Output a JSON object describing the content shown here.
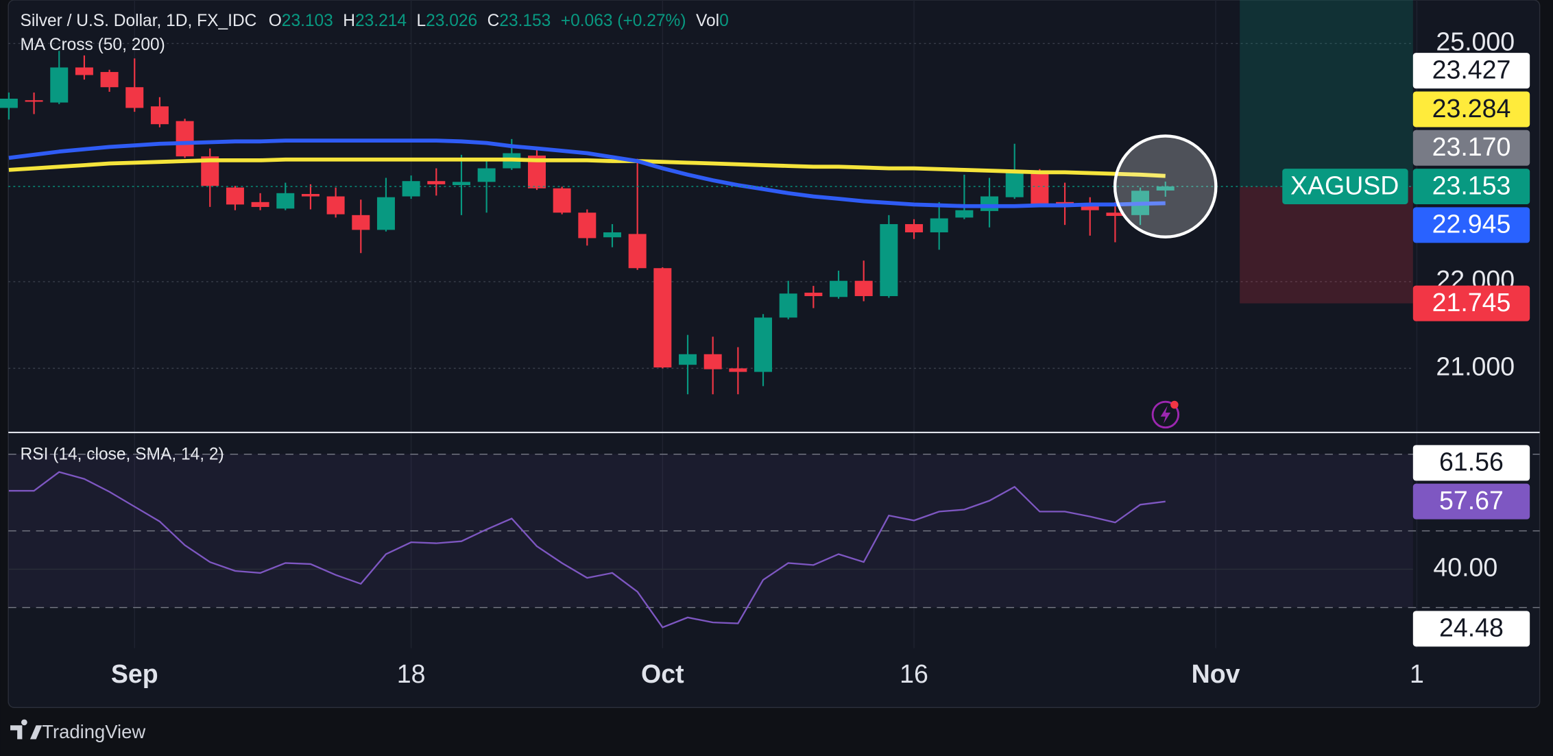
{
  "header": {
    "symbol": "Silver / U.S. Dollar, 1D, FX_IDC",
    "ohlc_labels": [
      "O",
      "H",
      "L",
      "C"
    ],
    "change": "+0.063 (+0.27%)",
    "volume_label": "Vol",
    "volume": 0
  },
  "chart_data": [
    {
      "type": "candlestick",
      "subtitle": "MA Cross (50, 200)",
      "log_scale": true,
      "grid": true,
      "categories": [
        null,
        null,
        null,
        null,
        null,
        "Sep",
        null,
        null,
        null,
        null,
        null,
        null,
        null,
        null,
        null,
        null,
        "18",
        null,
        null,
        null,
        null,
        null,
        null,
        null,
        null,
        null,
        "Oct",
        null,
        null,
        null,
        null,
        null,
        null,
        null,
        null,
        null,
        "16",
        null,
        null,
        null,
        null,
        null,
        null,
        null,
        null,
        null,
        null,
        null,
        "Nov",
        null,
        null,
        null,
        null,
        null,
        null,
        null,
        "1"
      ],
      "open": [
        24.15,
        24.25,
        24.22,
        24.68,
        24.62,
        24.42,
        24.17,
        23.98,
        23.53,
        23.14,
        22.96,
        22.88,
        23.06,
        23.03,
        22.8,
        22.62,
        23.03,
        23.22,
        23.17,
        23.21,
        23.38,
        23.54,
        23.13,
        22.83,
        22.53,
        22.57,
        22.16,
        21.04,
        21.16,
        21.0,
        20.96,
        21.58,
        21.87,
        21.82,
        22.01,
        21.83,
        22.69,
        22.59,
        22.77,
        22.85,
        23.02,
        23.35,
        22.96,
        22.92,
        22.83,
        22.8,
        23.103,
        null,
        null,
        null,
        null,
        null,
        null,
        null,
        null,
        null,
        null
      ],
      "high": [
        24.35,
        24.35,
        24.9,
        24.84,
        24.65,
        24.8,
        24.29,
        24.01,
        23.63,
        23.16,
        23.07,
        23.2,
        23.18,
        23.14,
        22.99,
        23.26,
        23.29,
        23.38,
        23.55,
        23.51,
        23.75,
        23.63,
        23.15,
        22.87,
        22.69,
        23.5,
        22.17,
        21.38,
        21.36,
        21.24,
        21.62,
        22.01,
        21.95,
        22.13,
        22.25,
        22.8,
        22.75,
        22.96,
        23.3,
        23.26,
        23.69,
        23.37,
        23.2,
        23.02,
        22.96,
        23.14,
        23.214,
        null,
        null,
        null,
        null,
        null,
        null,
        null,
        null,
        null,
        null
      ],
      "low": [
        24.0,
        24.07,
        24.2,
        24.52,
        24.36,
        24.1,
        23.9,
        23.51,
        22.9,
        22.86,
        22.86,
        22.86,
        22.87,
        22.77,
        22.34,
        22.6,
        23.0,
        23.04,
        22.8,
        22.83,
        23.36,
        23.11,
        22.81,
        22.43,
        22.41,
        22.14,
        21.0,
        20.71,
        20.71,
        20.71,
        20.8,
        21.56,
        21.69,
        21.8,
        21.77,
        21.81,
        22.51,
        22.38,
        22.75,
        22.65,
        23.0,
        22.9,
        22.68,
        22.55,
        22.47,
        22.68,
        23.026,
        null,
        null,
        null,
        null,
        null,
        null,
        null,
        null,
        null,
        null
      ],
      "close": [
        24.27,
        24.23,
        24.68,
        24.58,
        24.42,
        24.15,
        23.94,
        23.53,
        23.16,
        22.93,
        22.9,
        23.07,
        23.03,
        22.81,
        22.62,
        23.02,
        23.22,
        23.18,
        23.21,
        23.38,
        23.57,
        23.13,
        22.83,
        22.52,
        22.59,
        22.16,
        21.01,
        21.16,
        20.99,
        20.96,
        21.58,
        21.86,
        21.83,
        22.01,
        21.83,
        22.69,
        22.59,
        22.76,
        22.86,
        23.03,
        23.35,
        22.93,
        22.92,
        22.86,
        22.79,
        23.1,
        23.153,
        null,
        null,
        null,
        null,
        null,
        null,
        null,
        null,
        null,
        null
      ],
      "up_color": "#089981",
      "down_color": "#f23645",
      "lines": [
        {
          "color": "#f5e43b",
          "values": [
            23.36,
            23.38,
            23.4,
            23.42,
            23.44,
            23.45,
            23.46,
            23.47,
            23.48,
            23.48,
            23.48,
            23.49,
            23.49,
            23.49,
            23.49,
            23.49,
            23.49,
            23.49,
            23.49,
            23.49,
            23.49,
            23.48,
            23.48,
            23.48,
            23.47,
            23.47,
            23.46,
            23.45,
            23.44,
            23.43,
            23.42,
            23.41,
            23.4,
            23.4,
            23.39,
            23.38,
            23.38,
            23.37,
            23.36,
            23.35,
            23.34,
            23.33,
            23.33,
            23.32,
            23.31,
            23.3,
            23.284,
            null,
            null,
            null,
            null,
            null,
            null,
            null,
            null,
            null,
            null
          ]
        },
        {
          "color": "#2f5cf5",
          "values": [
            23.51,
            23.55,
            23.59,
            23.62,
            23.65,
            23.67,
            23.69,
            23.7,
            23.71,
            23.72,
            23.72,
            23.73,
            23.73,
            23.73,
            23.73,
            23.73,
            23.73,
            23.73,
            23.72,
            23.7,
            23.66,
            23.63,
            23.6,
            23.57,
            23.52,
            23.47,
            23.38,
            23.3,
            23.23,
            23.17,
            23.12,
            23.07,
            23.03,
            23.0,
            22.97,
            22.95,
            22.93,
            22.92,
            22.91,
            22.91,
            22.91,
            22.92,
            22.92,
            22.93,
            22.93,
            22.94,
            22.945,
            null,
            null,
            null,
            null,
            null,
            null,
            null,
            null,
            null,
            null
          ]
        }
      ],
      "ylim": [
        20.29,
        25.59
      ],
      "yticks": [
        {
          "value": 25,
          "label": "25.000"
        },
        {
          "value": 22,
          "label": "22.000"
        },
        {
          "value": 21,
          "label": "21.000"
        }
      ],
      "price_labels": {
        "values": [
          23.427,
          23.284,
          {
            "value": 23.17,
            "label": "23.170"
          },
          23.153,
          22.945,
          21.745
        ],
        "colors": [
          "#ffffff",
          "#ffeb3b",
          "#787b86",
          "#089981",
          "#2962ff",
          "#f23645"
        ]
      },
      "symbol_tag": "XAGUSD"
    },
    {
      "type": "line",
      "title": "RSI (14, close, SMA, 14, 2)",
      "color": "#7e57c2",
      "values": [
        60.45,
        60.45,
        65.35,
        63.55,
        60.19,
        56.32,
        52.45,
        46.26,
        41.87,
        39.55,
        39.03,
        41.61,
        41.35,
        38.52,
        36.19,
        43.94,
        47.03,
        46.77,
        47.29,
        50.39,
        53.23,
        46.0,
        41.61,
        37.74,
        39.03,
        34.13,
        24.84,
        27.42,
        26.13,
        25.87,
        37.23,
        41.61,
        41.1,
        43.94,
        41.87,
        54.0,
        52.71,
        55.03,
        55.55,
        57.87,
        61.48,
        55.03,
        55.03,
        53.74,
        52.19,
        56.84,
        57.67,
        null,
        null,
        null,
        null,
        null,
        null,
        null,
        null,
        null,
        null
      ],
      "ylim": [
        19.42,
        75.68
      ],
      "yticks": [
        {
          "value": 40,
          "label": "40.00"
        }
      ],
      "bands": [
        70,
        50,
        30
      ],
      "price_labels": {
        "values": [
          61.56,
          57.67,
          24.48
        ],
        "colors": [
          "#ffffff",
          "#7e57c2",
          "#ffffff"
        ]
      }
    }
  ],
  "footer": {
    "brand": "TradingView"
  }
}
